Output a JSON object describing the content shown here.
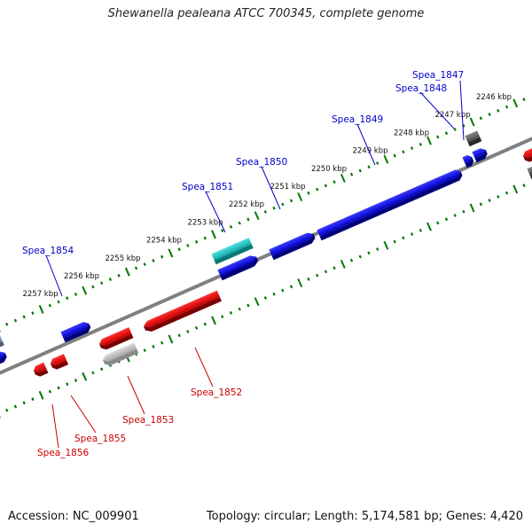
{
  "title": "Shewanella pealeana ATCC 700345, complete genome",
  "footer": {
    "accession": "Accession: NC_009901",
    "summary": "Topology: circular; Length: 5,174,581 bp; Genes: 4,420"
  },
  "colors": {
    "forward_gene": "#0000ee",
    "forward_gene_alt": "#22c8c8",
    "reverse_gene": "#ee0000",
    "reverse_gene_alt": "#bbbbbb",
    "pseudo_gene": "#666666",
    "backbone": "#808080",
    "tick": "#007700",
    "forward_label": "#0000cc",
    "reverse_label": "#cc0000"
  },
  "kbp_ticks": [
    {
      "label": "2246 kbp",
      "kbp": 2246
    },
    {
      "label": "2247 kbp",
      "kbp": 2247
    },
    {
      "label": "2248 kbp",
      "kbp": 2248
    },
    {
      "label": "2249 kbp",
      "kbp": 2249
    },
    {
      "label": "2250 kbp",
      "kbp": 2250
    },
    {
      "label": "2251 kbp",
      "kbp": 2251
    },
    {
      "label": "2252 kbp",
      "kbp": 2252
    },
    {
      "label": "2253 kbp",
      "kbp": 2253
    },
    {
      "label": "2254 kbp",
      "kbp": 2254
    },
    {
      "label": "2255 kbp",
      "kbp": 2255
    },
    {
      "label": "2256 kbp",
      "kbp": 2256
    },
    {
      "label": "2257 kbp",
      "kbp": 2257
    }
  ],
  "genes_forward": [
    {
      "name": "Spea_1847",
      "labeled": true
    },
    {
      "name": "Spea_1848",
      "labeled": true
    },
    {
      "name": "Spea_1849",
      "labeled": true
    },
    {
      "name": "Spea_1850",
      "labeled": true
    },
    {
      "name": "Spea_1851",
      "labeled": true
    },
    {
      "name": "Spea_1854",
      "labeled": true
    }
  ],
  "genes_reverse": [
    {
      "name": "Spea_1852",
      "labeled": true
    },
    {
      "name": "Spea_1853",
      "labeled": true
    },
    {
      "name": "Spea_1855",
      "labeled": true
    },
    {
      "name": "Spea_1856",
      "labeled": true
    }
  ]
}
